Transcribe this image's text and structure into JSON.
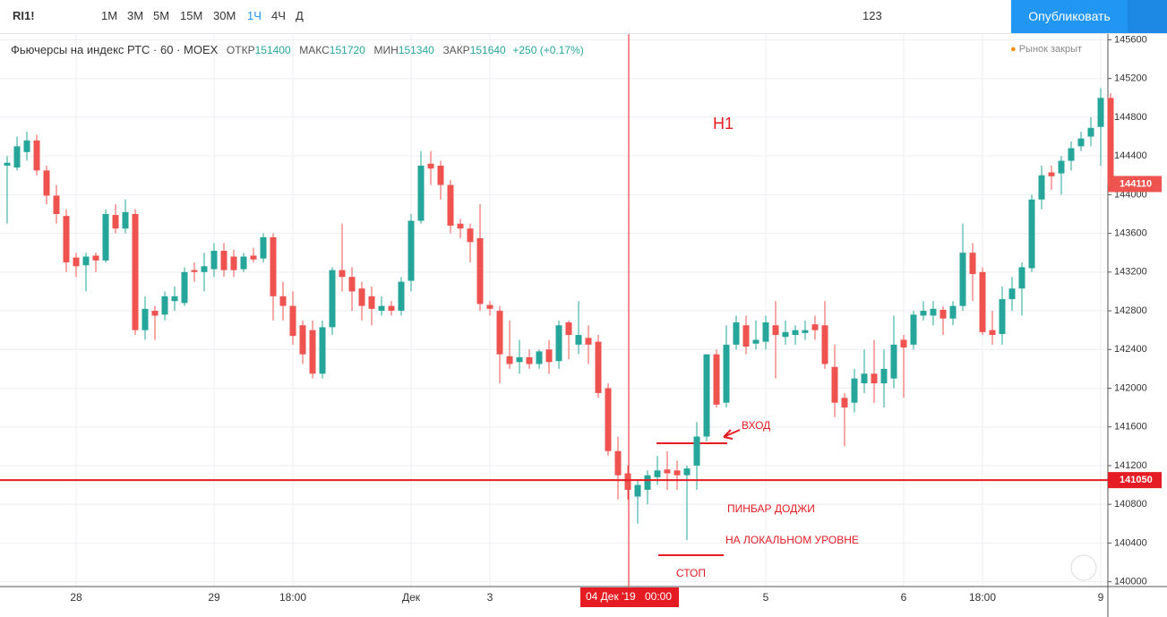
{
  "toolbar": {
    "symbol": "RI1!",
    "intervals": [
      "1М",
      "3М",
      "5М",
      "15М",
      "30М",
      "1Ч",
      "4Ч",
      "Д"
    ],
    "compare_value": "123",
    "publish": "Опубликовать"
  },
  "header": {
    "instrument": "Фьючерсы на индекс РТС · 60 · MOEX",
    "open_label": "ОТКР",
    "open": "151400",
    "high_label": "МАКС",
    "high": "151720",
    "low_label": "МИН",
    "low": "151340",
    "close_label": "ЗАКР",
    "close": "151640",
    "change": "+250 (+0.17%)",
    "market_status": "Рынок закрыт"
  },
  "chart_data": {
    "type": "candlestick",
    "categories": [
      null,
      null,
      null,
      null,
      null,
      null,
      null,
      "28",
      null,
      null,
      null,
      null,
      null,
      null,
      null,
      null,
      null,
      null,
      null,
      null,
      null,
      "29",
      null,
      null,
      null,
      null,
      null,
      null,
      null,
      "18:00",
      null,
      null,
      null,
      null,
      null,
      null,
      null,
      null,
      null,
      null,
      null,
      "Дек",
      null,
      null,
      null,
      null,
      null,
      null,
      null,
      "3",
      null,
      null,
      null,
      null,
      null,
      null,
      null,
      null,
      null,
      null,
      null,
      null,
      null,
      null,
      null,
      null,
      null,
      null,
      null,
      null,
      null,
      null,
      null,
      null,
      null,
      null,
      null,
      "5",
      null,
      null,
      null,
      null,
      null,
      null,
      null,
      null,
      null,
      null,
      null,
      null,
      null,
      "6",
      null,
      null,
      null,
      null,
      null,
      null,
      null,
      "18:00",
      null,
      null,
      null,
      null,
      null,
      null,
      null,
      null,
      null,
      null,
      null,
      "9",
      null
    ],
    "open": [
      144300,
      144280,
      144440,
      144560,
      144250,
      143990,
      143780,
      143350,
      143270,
      143370,
      143320,
      143790,
      143650,
      143800,
      142600,
      142800,
      142760,
      142900,
      142880,
      143220,
      143200,
      143230,
      143420,
      143360,
      143230,
      143370,
      143340,
      143560,
      142950,
      142850,
      142650,
      142600,
      142150,
      142630,
      143220,
      143150,
      143030,
      142950,
      142800,
      142850,
      142800,
      143110,
      143730,
      144320,
      144300,
      144100,
      143700,
      143650,
      143550,
      142860,
      142800,
      142330,
      142270,
      142320,
      142250,
      142400,
      142280,
      142680,
      142450,
      142520,
      142480,
      142000,
      141350,
      141120,
      140880,
      140950,
      141080,
      141160,
      141150,
      141100,
      141200,
      141500,
      142350,
      141850,
      142450,
      142650,
      142460,
      142480,
      142650,
      142530,
      142550,
      142570,
      142660,
      142650,
      142220,
      141900,
      141850,
      142050,
      142150,
      142050,
      142100,
      142500,
      142450,
      142750,
      142750,
      142810,
      142720,
      142850,
      143400,
      143200,
      142600,
      142560,
      142920,
      143030,
      143240,
      143950,
      144230,
      144220,
      144350,
      144500,
      144600,
      144700,
      145000
    ],
    "high": [
      144400,
      144600,
      144650,
      144620,
      144300,
      144100,
      143850,
      143400,
      143400,
      143400,
      143850,
      143900,
      143950,
      143850,
      142950,
      142850,
      143000,
      143050,
      143250,
      143300,
      143400,
      143500,
      143500,
      143430,
      143400,
      143450,
      143600,
      143600,
      143100,
      143000,
      142700,
      142700,
      142700,
      143250,
      143700,
      143250,
      143100,
      143050,
      142950,
      142900,
      143150,
      143800,
      144450,
      144450,
      144350,
      144150,
      143750,
      143700,
      143900,
      142900,
      142850,
      142700,
      142500,
      142400,
      142400,
      142500,
      142700,
      142700,
      142900,
      142650,
      142550,
      142050,
      141500,
      141200,
      141050,
      141150,
      141300,
      141350,
      141250,
      141200,
      141650,
      142350,
      142400,
      142650,
      142750,
      142750,
      142700,
      142750,
      142900,
      142700,
      142650,
      142700,
      142750,
      142900,
      142450,
      141950,
      142200,
      142400,
      142500,
      142400,
      142750,
      142550,
      142800,
      142900,
      142900,
      142850,
      142900,
      143700,
      143500,
      143250,
      142800,
      143050,
      143150,
      143300,
      144000,
      144300,
      144300,
      144400,
      144550,
      144650,
      144800,
      145100,
      145050
    ],
    "low": [
      143700,
      144250,
      144350,
      144200,
      143900,
      143700,
      143200,
      143150,
      143000,
      143200,
      143300,
      143600,
      143600,
      142550,
      142500,
      142500,
      142700,
      142800,
      142850,
      143100,
      143000,
      143150,
      143150,
      143150,
      143200,
      143300,
      143300,
      142700,
      142700,
      142450,
      142250,
      142100,
      142100,
      142550,
      143000,
      142800,
      142700,
      142650,
      142750,
      142750,
      142750,
      143000,
      143700,
      144100,
      143950,
      143600,
      143550,
      143300,
      142800,
      142750,
      142050,
      142200,
      142150,
      142200,
      142200,
      142150,
      142200,
      142300,
      142350,
      142250,
      141900,
      141300,
      140850,
      140850,
      140600,
      140800,
      141000,
      140950,
      140950,
      140430,
      140950,
      141450,
      141800,
      141800,
      142400,
      142350,
      142400,
      142400,
      142100,
      142450,
      142450,
      142500,
      142500,
      142200,
      141700,
      141400,
      141750,
      141950,
      141850,
      141800,
      142000,
      141900,
      142400,
      142700,
      142650,
      142550,
      142650,
      142800,
      142900,
      142550,
      142450,
      142450,
      142800,
      142750,
      143200,
      143850,
      144050,
      144000,
      144250,
      144450,
      144500,
      144300,
      144100
    ],
    "close": [
      144330,
      144500,
      144560,
      144250,
      143990,
      143800,
      143300,
      143260,
      143360,
      143320,
      143800,
      143650,
      143820,
      142600,
      142820,
      142750,
      142950,
      142950,
      143200,
      143200,
      143260,
      143420,
      143220,
      143220,
      143360,
      143330,
      143560,
      142950,
      142850,
      142540,
      142350,
      142150,
      142630,
      143220,
      143150,
      143000,
      142850,
      142820,
      142850,
      142800,
      143100,
      143730,
      144300,
      144270,
      144100,
      143680,
      143650,
      143510,
      142870,
      142820,
      142350,
      142250,
      142320,
      142250,
      142380,
      142270,
      142650,
      142550,
      142550,
      142450,
      141950,
      141350,
      141100,
      140950,
      141000,
      141100,
      141150,
      141120,
      141100,
      141170,
      141500,
      142350,
      141830,
      142450,
      142680,
      142430,
      142500,
      142680,
      142550,
      142580,
      142600,
      142600,
      142600,
      142250,
      141850,
      141800,
      142100,
      142150,
      142050,
      142200,
      142450,
      142420,
      142760,
      142800,
      142820,
      142720,
      142850,
      143400,
      143180,
      142580,
      142550,
      142920,
      143030,
      143250,
      143950,
      144200,
      144190,
      144350,
      144480,
      144580,
      144690,
      145000,
      144110
    ],
    "up_color": "#26a69a",
    "down_color": "#ef5350",
    "ylim": [
      139950,
      145660
    ],
    "yticks": [
      140000,
      140400,
      140800,
      141200,
      141600,
      142000,
      142400,
      142800,
      143200,
      143600,
      144000,
      144400,
      144800,
      145200,
      145600
    ],
    "grid": true,
    "horizontal_line": 141050,
    "horizontal_line_color": "#e51c23",
    "last_price": 144110,
    "crosshair": {
      "date": "04 Дек '19",
      "time": "00:00"
    },
    "annotations": [
      "H1",
      "ВХОД",
      "ПИНБАР ДОДЖИ",
      "НА ЛОКАЛЬНОМ УРОВНЕ",
      "СТОП"
    ]
  }
}
